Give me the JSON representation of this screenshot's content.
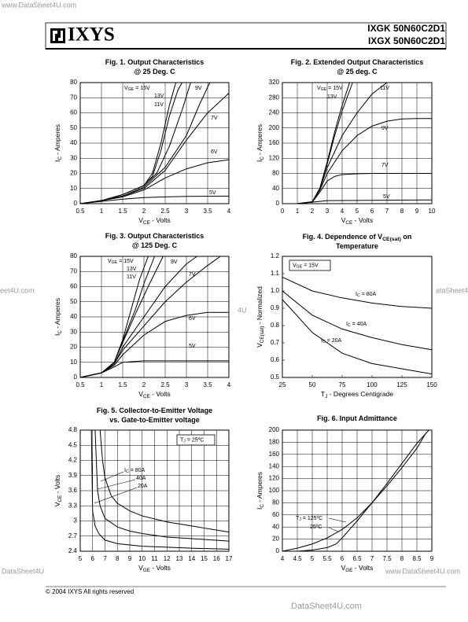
{
  "header": {
    "logo": "IXYS",
    "parts": [
      "IXGK 50N60C2D1",
      "IXGX 50N60C2D1"
    ]
  },
  "footer": {
    "copyright": "© 2004 IXYS All rights reserved"
  },
  "watermarks": [
    "www.DataSheet4U.com",
    "eet4U.com",
    "4U",
    "ataSheet4",
    "DataSheet4U",
    "www.DataSheet4U.com",
    "DataSheet4U.com"
  ],
  "chart_data": [
    {
      "type": "line",
      "title": [
        [
          "Fig. 1. Output Characteristics"
        ],
        [
          "@ 25 Deg. C"
        ]
      ],
      "x_label": [
        "V",
        "CE",
        " - Volts"
      ],
      "y_label": [
        "I",
        "C",
        " - Amperes"
      ],
      "label_prefix": [
        "V",
        "GE",
        " = "
      ],
      "xlim": [
        0.5,
        4
      ],
      "xticks": [
        0.5,
        1,
        1.5,
        2,
        2.5,
        3,
        3.5,
        4
      ],
      "ylim": [
        0,
        80
      ],
      "yticks": [
        0,
        10,
        20,
        30,
        40,
        50,
        60,
        70,
        80
      ],
      "grid": true,
      "color": "#000000",
      "series": [
        {
          "name": "15V",
          "x": [
            0.5,
            1,
            1.5,
            2,
            2.2,
            2.4,
            2.6,
            2.75
          ],
          "values": [
            0,
            2,
            6,
            12,
            20,
            40,
            65,
            80
          ]
        },
        {
          "name": "13V",
          "x": [
            0.5,
            1,
            1.5,
            2,
            2.2,
            2.4,
            2.6,
            2.8,
            2.9
          ],
          "values": [
            0,
            2,
            6,
            12,
            18,
            35,
            58,
            75,
            80
          ]
        },
        {
          "name": "11V",
          "x": [
            0.5,
            1,
            1.5,
            2,
            2.3,
            2.6,
            2.9,
            3.1
          ],
          "values": [
            0,
            2,
            6,
            12,
            20,
            38,
            62,
            80
          ]
        },
        {
          "name": "9V",
          "x": [
            0.5,
            1,
            1.5,
            2,
            2.5,
            3,
            3.3,
            3.55
          ],
          "values": [
            0,
            2,
            5,
            11,
            24,
            45,
            65,
            80
          ]
        },
        {
          "name": "7V",
          "x": [
            0.5,
            1,
            1.5,
            2,
            2.5,
            3,
            3.5,
            4
          ],
          "values": [
            0,
            2,
            5,
            10,
            22,
            42,
            60,
            73
          ]
        },
        {
          "name": "6V",
          "x": [
            0.5,
            1,
            1.5,
            2,
            2.5,
            3,
            3.5,
            4
          ],
          "values": [
            0,
            2,
            4.5,
            9,
            17,
            23,
            27,
            29
          ]
        },
        {
          "name": "5V",
          "x": [
            0.5,
            1,
            1.5,
            2,
            2.5,
            3,
            4
          ],
          "values": [
            0,
            1.5,
            3,
            4,
            4.5,
            4.8,
            5
          ]
        }
      ]
    },
    {
      "type": "line",
      "title": [
        [
          "Fig. 2. Extended Output Characteristics"
        ],
        [
          "@ 25 deg. C"
        ]
      ],
      "x_label": [
        "V",
        "CE",
        " - Volts"
      ],
      "y_label": [
        "I",
        "C",
        " - Amperes"
      ],
      "label_prefix": [
        "V",
        "GE",
        " = "
      ],
      "xlim": [
        0,
        10
      ],
      "xticks": [
        0,
        1,
        2,
        3,
        4,
        5,
        6,
        7,
        8,
        9,
        10
      ],
      "ylim": [
        0,
        320
      ],
      "yticks": [
        0,
        40,
        80,
        120,
        160,
        200,
        240,
        280,
        320
      ],
      "grid": true,
      "color": "#000000",
      "series": [
        {
          "name": "15V",
          "x": [
            1,
            2,
            2.5,
            3,
            3.5,
            4,
            4.5
          ],
          "values": [
            0,
            5,
            40,
            110,
            190,
            260,
            320
          ]
        },
        {
          "name": "13V",
          "x": [
            1,
            2,
            2.5,
            3,
            3.5,
            4,
            4.7
          ],
          "values": [
            0,
            5,
            40,
            105,
            180,
            245,
            320
          ]
        },
        {
          "name": "11V",
          "x": [
            1,
            2,
            2.5,
            3,
            4,
            5,
            6,
            7
          ],
          "values": [
            0,
            5,
            38,
            95,
            180,
            240,
            290,
            320
          ]
        },
        {
          "name": "9V",
          "x": [
            1,
            2,
            2.5,
            3,
            4,
            5,
            6,
            7,
            8,
            9,
            10
          ],
          "values": [
            0,
            5,
            35,
            80,
            140,
            180,
            205,
            218,
            224,
            225,
            225
          ]
        },
        {
          "name": "7V",
          "x": [
            1,
            2,
            2.5,
            3,
            3.5,
            4,
            5,
            6,
            8,
            10
          ],
          "values": [
            0,
            4,
            30,
            60,
            72,
            77,
            79,
            80,
            80,
            80
          ]
        },
        {
          "name": "5V",
          "x": [
            1,
            3,
            10
          ],
          "values": [
            0,
            8,
            10
          ]
        }
      ]
    },
    {
      "type": "line",
      "title": [
        [
          "Fig. 3. Output Characteristics"
        ],
        [
          "@ 125 Deg. C"
        ]
      ],
      "x_label": [
        "V",
        "CE",
        " - Volts"
      ],
      "y_label": [
        "I",
        "C",
        " - Amperes"
      ],
      "label_prefix": [
        "V",
        "GE",
        " = "
      ],
      "xlim": [
        0.5,
        4
      ],
      "xticks": [
        0.5,
        1,
        1.5,
        2,
        2.5,
        3,
        3.5,
        4
      ],
      "ylim": [
        0,
        80
      ],
      "yticks": [
        0,
        10,
        20,
        30,
        40,
        50,
        60,
        70,
        80
      ],
      "grid": true,
      "color": "#000000",
      "series": [
        {
          "name": "15V",
          "x": [
            0.5,
            1,
            1.3,
            1.5,
            1.7,
            1.9,
            2.1
          ],
          "values": [
            0,
            3,
            10,
            25,
            45,
            65,
            80
          ]
        },
        {
          "name": "13V",
          "x": [
            0.5,
            1,
            1.3,
            1.5,
            1.8,
            2,
            2.25
          ],
          "values": [
            0,
            3,
            10,
            24,
            45,
            62,
            80
          ]
        },
        {
          "name": "11V",
          "x": [
            0.5,
            1,
            1.3,
            1.5,
            1.8,
            2.1,
            2.45
          ],
          "values": [
            0,
            3,
            10,
            23,
            42,
            60,
            80
          ]
        },
        {
          "name": "9V",
          "x": [
            0.5,
            1,
            1.3,
            1.5,
            2,
            2.5,
            3,
            3.25
          ],
          "values": [
            0,
            3,
            9,
            20,
            40,
            60,
            75,
            80
          ]
        },
        {
          "name": "7V",
          "x": [
            0.5,
            1,
            1.3,
            1.5,
            2,
            2.5,
            3,
            3.5,
            3.8
          ],
          "values": [
            0,
            3,
            9,
            18,
            34,
            50,
            63,
            74,
            80
          ]
        },
        {
          "name": "6V",
          "x": [
            0.5,
            1,
            1.3,
            1.5,
            2,
            2.5,
            3,
            3.5,
            4
          ],
          "values": [
            0,
            3,
            8,
            15,
            28,
            37,
            41,
            43,
            43
          ]
        },
        {
          "name": "5V",
          "x": [
            0.5,
            1,
            1.3,
            1.5,
            2,
            3,
            4
          ],
          "values": [
            0,
            3,
            7,
            10,
            11,
            11,
            11
          ]
        }
      ]
    },
    {
      "type": "line",
      "title": [
        [
          "Fig. 4. Dependence of V",
          "CE(sat)",
          " on"
        ],
        [
          "Temperature"
        ]
      ],
      "x_label": [
        "T",
        "J",
        " - Degrees Centigrade"
      ],
      "y_label": [
        "V",
        "CE(sat)",
        " - Normalized"
      ],
      "label_prefix": [
        "I",
        "C",
        " = "
      ],
      "box_label": [
        "V",
        "GE",
        " = 15V"
      ],
      "xlim": [
        25,
        150
      ],
      "xticks": [
        25,
        50,
        75,
        100,
        125,
        150
      ],
      "ylim": [
        0.5,
        1.2
      ],
      "yticks": [
        0.5,
        0.6,
        0.7,
        0.8,
        0.9,
        {
          "value": 1,
          "label": "1.0"
        },
        1.1,
        1.2
      ],
      "grid": false,
      "color": "#000000",
      "series": [
        {
          "name": "80A",
          "x": [
            25,
            50,
            75,
            100,
            125,
            150
          ],
          "values": [
            1.08,
            1,
            0.96,
            0.93,
            0.91,
            0.9
          ]
        },
        {
          "name": "40A",
          "x": [
            25,
            50,
            75,
            100,
            125,
            150
          ],
          "values": [
            1,
            0.86,
            0.78,
            0.73,
            0.69,
            0.66
          ]
        },
        {
          "name": "20A",
          "x": [
            25,
            50,
            75,
            100,
            125,
            150
          ],
          "values": [
            0.95,
            0.76,
            0.64,
            0.58,
            0.55,
            0.52
          ]
        }
      ]
    },
    {
      "type": "line",
      "title": [
        [
          "Fig. 5. Collector-to-Emitter Voltage"
        ],
        [
          "vs. Gate-to-Emitter voltage"
        ]
      ],
      "x_label": [
        "V",
        "GE",
        " - Volts"
      ],
      "y_label": [
        "V",
        "CE",
        " - Volts"
      ],
      "label_prefix": [
        "I",
        "C",
        " = "
      ],
      "box_label": [
        "T",
        "J",
        " = 25ºC"
      ],
      "xlim": [
        5,
        17
      ],
      "xticks": [
        5,
        6,
        7,
        8,
        9,
        10,
        11,
        12,
        13,
        14,
        15,
        16,
        17
      ],
      "ylim": [
        2.4,
        4.8
      ],
      "yticks": [
        2.4,
        2.7,
        3,
        3.3,
        3.6,
        3.9,
        4.2,
        4.5,
        4.8
      ],
      "grid": true,
      "color": "#000000",
      "series": [
        {
          "name": "80A",
          "x": [
            6.6,
            6.8,
            7,
            7.5,
            8,
            9,
            10,
            12,
            14,
            17
          ],
          "values": [
            4.8,
            4.2,
            3.85,
            3.5,
            3.35,
            3.2,
            3.1,
            2.98,
            2.9,
            2.78
          ]
        },
        {
          "name": "40A",
          "x": [
            6.2,
            6.4,
            6.6,
            7,
            8,
            9,
            10,
            12,
            14,
            17
          ],
          "values": [
            4.8,
            3.6,
            3.3,
            3.05,
            2.88,
            2.8,
            2.75,
            2.68,
            2.65,
            2.6
          ]
        },
        {
          "name": "20A",
          "x": [
            5.9,
            6,
            6.2,
            6.5,
            7,
            8,
            10,
            12,
            14,
            17
          ],
          "values": [
            4.8,
            3.2,
            2.9,
            2.75,
            2.62,
            2.55,
            2.5,
            2.48,
            2.46,
            2.44
          ]
        }
      ]
    },
    {
      "type": "line",
      "title": [
        [
          "Fig. 6. Input Admittance"
        ]
      ],
      "x_label": [
        "V",
        "GE",
        " - Volts"
      ],
      "y_label": [
        "I",
        "C",
        " - Amperes"
      ],
      "label_prefix": [
        "T",
        "J",
        " = "
      ],
      "xlim": [
        4,
        9
      ],
      "xticks": [
        4,
        4.5,
        5,
        5.5,
        6,
        6.5,
        7,
        7.5,
        8,
        8.5,
        9
      ],
      "ylim": [
        0,
        200
      ],
      "yticks": [
        0,
        20,
        40,
        60,
        80,
        100,
        120,
        140,
        160,
        180,
        200
      ],
      "grid": true,
      "color": "#000000",
      "series": [
        {
          "name": "125ºC",
          "x": [
            4,
            4.5,
            5,
            5.5,
            6,
            6.5,
            7,
            7.5,
            8,
            8.5,
            8.8
          ],
          "values": [
            0,
            5,
            12,
            22,
            36,
            55,
            80,
            108,
            138,
            170,
            195
          ]
        },
        {
          "name": "25ºC",
          "x": [
            4.5,
            5,
            5.5,
            5.8,
            6,
            6.5,
            7,
            7.5,
            8,
            8.5,
            8.9
          ],
          "values": [
            0,
            2,
            6,
            12,
            22,
            50,
            80,
            112,
            145,
            178,
            200
          ]
        }
      ]
    }
  ]
}
